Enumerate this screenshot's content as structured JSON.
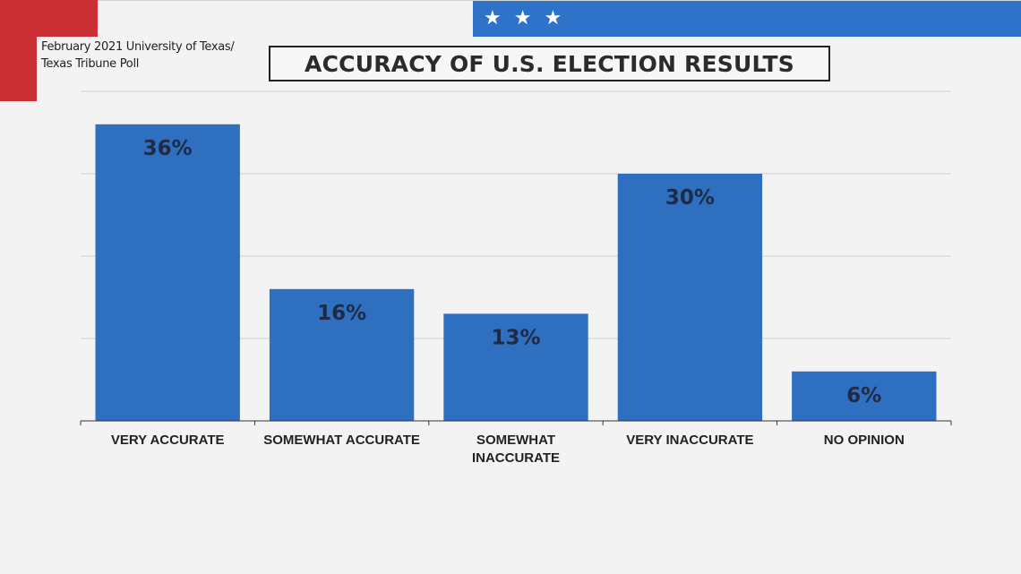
{
  "source": {
    "line1": "February 2021 University of Texas/",
    "line2": "Texas Tribune Poll"
  },
  "title": "ACCURACY OF U.S. ELECTION RESULTS",
  "banner": {
    "stars": [
      "★",
      "★",
      "★"
    ]
  },
  "colors": {
    "bar": "#2f6fbf",
    "banner_blue": "#2f72c9",
    "accent_red": "#cc2f35",
    "grid": "#cfcfcf",
    "axis": "#333333",
    "value_label": "#1f2a44",
    "category_label": "#222222"
  },
  "chart_data": {
    "type": "bar",
    "title": "ACCURACY OF U.S. ELECTION RESULTS",
    "categories": [
      [
        "VERY ACCURATE"
      ],
      [
        "SOMEWHAT ACCURATE"
      ],
      [
        "SOMEWHAT",
        "INACCURATE"
      ],
      [
        "VERY INACCURATE"
      ],
      [
        "NO OPINION"
      ]
    ],
    "values": [
      36,
      16,
      13,
      30,
      6
    ],
    "data_labels": [
      "36%",
      "16%",
      "13%",
      "30%",
      "6%"
    ],
    "ylim": [
      0,
      40
    ],
    "grid": true,
    "legend": "none"
  }
}
